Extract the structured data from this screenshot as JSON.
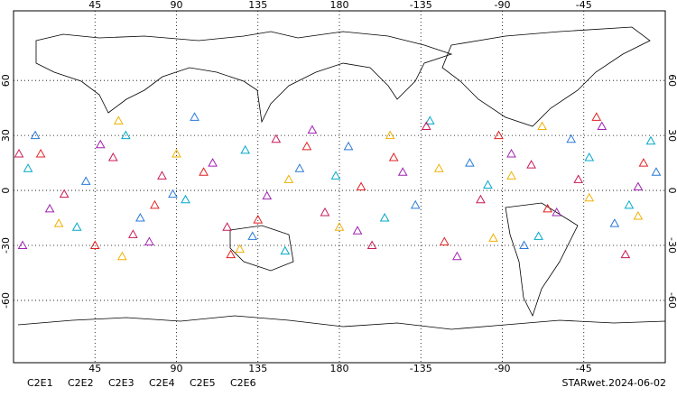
{
  "chart_data": {
    "type": "scatter",
    "caption": "STARwet.2024-06-02",
    "xlim": [
      0,
      360
    ],
    "ylim": [
      -94,
      98
    ],
    "xticks": [
      45,
      90,
      135,
      180,
      {
        "value": 225,
        "label": "-135"
      },
      {
        "value": 270,
        "label": "-90"
      },
      {
        "value": 315,
        "label": "-45"
      }
    ],
    "yticks": [
      60,
      30,
      0,
      -30,
      -60
    ],
    "grid": true,
    "series": [
      {
        "name": "C2E1",
        "color": "#00a8c8",
        "x": [
          8,
          35,
          62,
          95,
          128,
          150,
          178,
          205,
          230,
          262,
          290,
          318,
          340,
          352
        ],
        "values": [
          12,
          -20,
          30,
          -5,
          22,
          -33,
          8,
          -15,
          38,
          3,
          -25,
          18,
          -8,
          27
        ]
      },
      {
        "name": "C2E2",
        "color": "#a020b0",
        "x": [
          20,
          48,
          75,
          110,
          140,
          165,
          190,
          215,
          245,
          275,
          300,
          325,
          345,
          5
        ],
        "values": [
          -10,
          25,
          -28,
          15,
          -3,
          33,
          -22,
          10,
          -36,
          20,
          -12,
          35,
          2,
          -30
        ]
      },
      {
        "name": "C2E3",
        "color": "#2878d8",
        "x": [
          12,
          40,
          70,
          100,
          132,
          158,
          185,
          222,
          252,
          282,
          308,
          332,
          355,
          88
        ],
        "values": [
          30,
          5,
          -15,
          40,
          -25,
          12,
          24,
          -8,
          15,
          -30,
          28,
          -18,
          10,
          -2
        ]
      },
      {
        "name": "C2E4",
        "color": "#c81858",
        "x": [
          28,
          55,
          82,
          118,
          145,
          172,
          198,
          228,
          258,
          286,
          312,
          338,
          3,
          66
        ],
        "values": [
          -2,
          18,
          8,
          -20,
          28,
          -12,
          -30,
          35,
          -5,
          14,
          6,
          -35,
          20,
          -24
        ]
      },
      {
        "name": "C2E5",
        "color": "#e02020",
        "x": [
          15,
          45,
          78,
          105,
          135,
          162,
          192,
          238,
          268,
          295,
          322,
          348,
          120,
          210
        ],
        "values": [
          20,
          -30,
          -8,
          10,
          -16,
          24,
          2,
          -28,
          30,
          -10,
          40,
          15,
          -35,
          18
        ]
      },
      {
        "name": "C2E6",
        "color": "#f0b000",
        "x": [
          25,
          58,
          90,
          125,
          152,
          180,
          208,
          235,
          265,
          292,
          318,
          345,
          60,
          275
        ],
        "values": [
          -18,
          38,
          20,
          -32,
          6,
          -20,
          30,
          12,
          -26,
          35,
          -4,
          -14,
          -36,
          8
        ]
      }
    ]
  }
}
